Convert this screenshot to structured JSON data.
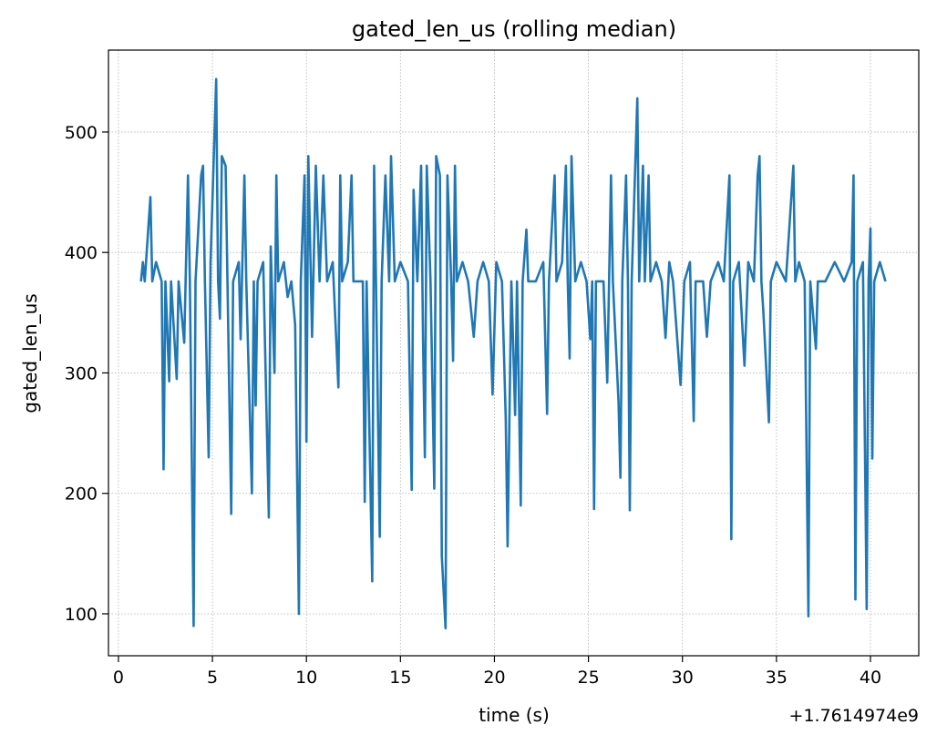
{
  "chart_data": {
    "type": "line",
    "title": "gated_len_us (rolling median)",
    "xlabel": "time (s)",
    "ylabel": "gated_len_us",
    "x_offset_label": "+1.7614974e9",
    "xlim": [
      -0.53,
      42.57
    ],
    "ylim": [
      65.2,
      568
    ],
    "xticks": [
      0,
      5,
      10,
      15,
      20,
      25,
      30,
      35,
      40
    ],
    "yticks": [
      100,
      200,
      300,
      400,
      500
    ],
    "grid": true,
    "series": [
      {
        "name": "gated_len_us",
        "color": "#1f77b4",
        "x": [
          1.2,
          1.3,
          1.4,
          1.7,
          1.8,
          2.0,
          2.3,
          2.4,
          2.5,
          2.7,
          2.8,
          3.1,
          3.2,
          3.5,
          3.7,
          3.8,
          4.0,
          4.1,
          4.4,
          4.5,
          4.6,
          4.8,
          4.9,
          5.2,
          5.3,
          5.4,
          5.5,
          5.7,
          5.8,
          6.0,
          6.1,
          6.4,
          6.5,
          6.7,
          6.8,
          7.1,
          7.2,
          7.3,
          7.4,
          7.7,
          8.0,
          8.1,
          8.3,
          8.4,
          8.5,
          8.8,
          9.0,
          9.2,
          9.4,
          9.6,
          9.7,
          9.9,
          10.0,
          10.1,
          10.3,
          10.5,
          10.7,
          10.9,
          11.1,
          11.4,
          11.7,
          11.8,
          11.9,
          12.2,
          12.4,
          12.5,
          13.0,
          13.1,
          13.2,
          13.5,
          13.6,
          13.7,
          13.9,
          14.0,
          14.2,
          14.4,
          14.5,
          14.7,
          15.0,
          15.4,
          15.6,
          15.7,
          15.9,
          16.1,
          16.2,
          16.3,
          16.4,
          16.6,
          16.8,
          16.9,
          17.1,
          17.2,
          17.4,
          17.5,
          17.7,
          17.8,
          17.9,
          18.0,
          18.3,
          18.6,
          18.9,
          19.1,
          19.4,
          19.7,
          19.9,
          20.1,
          20.4,
          20.6,
          20.7,
          20.9,
          21.1,
          21.2,
          21.4,
          21.5,
          21.7,
          21.8,
          22.2,
          22.6,
          22.8,
          22.9,
          23.2,
          23.3,
          23.6,
          23.8,
          23.9,
          24.0,
          24.1,
          24.3,
          24.6,
          24.9,
          25.1,
          25.2,
          25.3,
          25.4,
          25.8,
          26.0,
          26.2,
          26.3,
          26.6,
          26.7,
          26.8,
          27.0,
          27.1,
          27.2,
          27.3,
          27.6,
          27.7,
          27.9,
          28.0,
          28.2,
          28.3,
          28.6,
          28.9,
          29.1,
          29.3,
          29.5,
          29.9,
          30.1,
          30.4,
          30.6,
          30.7,
          31.1,
          31.3,
          31.5,
          31.9,
          32.2,
          32.5,
          32.6,
          32.7,
          33.0,
          33.3,
          33.5,
          33.8,
          34.0,
          34.1,
          34.2,
          34.3,
          34.6,
          34.7,
          35.0,
          35.5,
          35.9,
          36.0,
          36.2,
          36.5,
          36.7,
          36.8,
          37.1,
          37.2,
          37.6,
          38.1,
          38.6,
          39.0,
          39.1,
          39.2,
          39.3,
          39.6,
          39.8,
          39.9,
          40.0,
          40.1,
          40.2,
          40.5,
          40.8
        ],
        "values": [
          376,
          392,
          376,
          446,
          376,
          392,
          376,
          220,
          376,
          293,
          376,
          295,
          376,
          325,
          464,
          376,
          90,
          376,
          464,
          472,
          376,
          230,
          392,
          544,
          376,
          345,
          480,
          472,
          376,
          183,
          376,
          392,
          328,
          464,
          376,
          200,
          376,
          273,
          376,
          392,
          180,
          405,
          300,
          464,
          376,
          392,
          363,
          376,
          340,
          100,
          376,
          464,
          243,
          480,
          330,
          472,
          376,
          464,
          376,
          392,
          288,
          464,
          376,
          392,
          464,
          376,
          376,
          193,
          376,
          127,
          472,
          376,
          164,
          376,
          464,
          376,
          480,
          376,
          392,
          376,
          203,
          452,
          376,
          472,
          330,
          230,
          472,
          376,
          204,
          480,
          464,
          148,
          88,
          464,
          376,
          310,
          472,
          376,
          392,
          376,
          330,
          376,
          392,
          376,
          282,
          392,
          376,
          263,
          156,
          376,
          265,
          376,
          190,
          376,
          419,
          376,
          376,
          392,
          266,
          376,
          464,
          376,
          392,
          472,
          376,
          312,
          480,
          376,
          392,
          376,
          328,
          376,
          187,
          376,
          376,
          292,
          464,
          376,
          276,
          213,
          376,
          464,
          376,
          186,
          376,
          528,
          376,
          472,
          376,
          464,
          376,
          392,
          376,
          329,
          392,
          376,
          290,
          376,
          392,
          260,
          376,
          376,
          330,
          376,
          392,
          376,
          464,
          162,
          376,
          392,
          306,
          392,
          376,
          464,
          480,
          376,
          352,
          259,
          376,
          392,
          376,
          472,
          376,
          392,
          376,
          98,
          376,
          320,
          376,
          376,
          392,
          376,
          392,
          464,
          112,
          376,
          392,
          104,
          376,
          420,
          229,
          376,
          392,
          376
        ]
      }
    ]
  }
}
